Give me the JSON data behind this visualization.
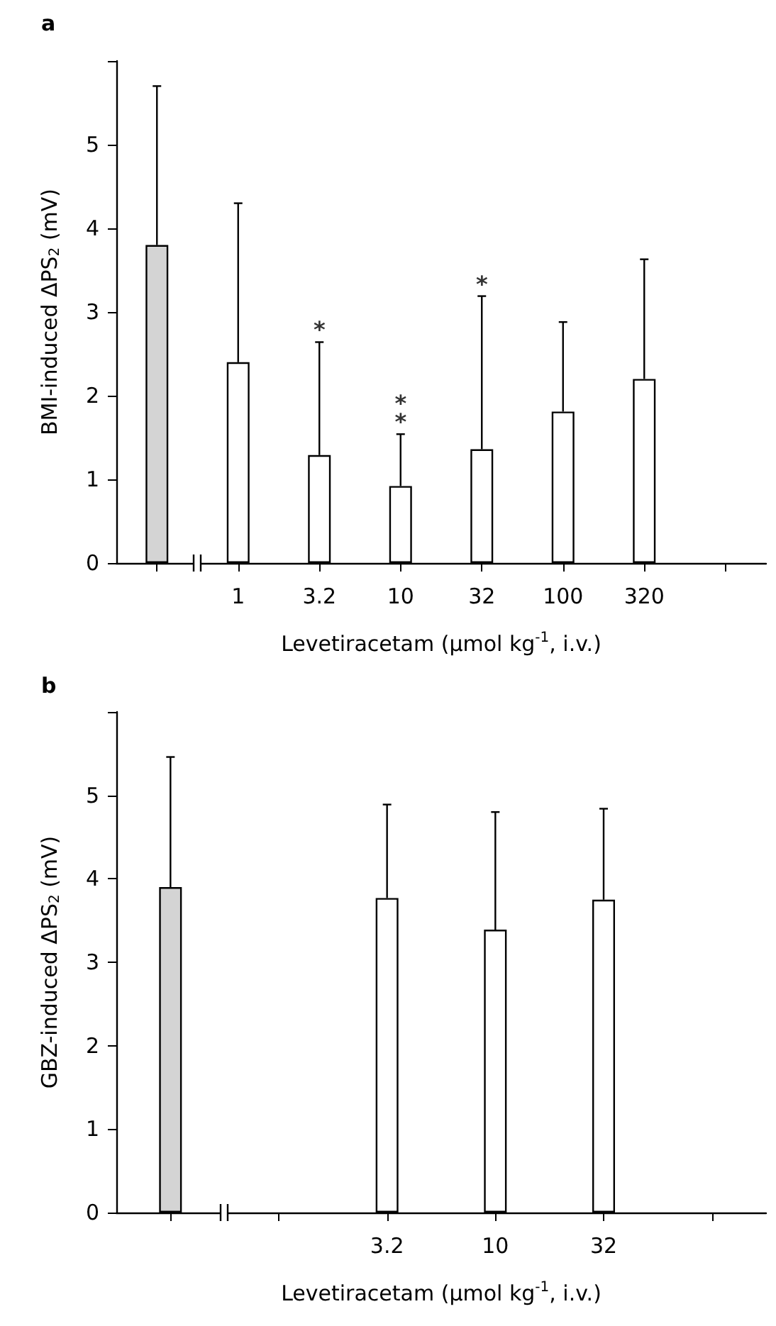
{
  "chart_data": [
    {
      "type": "bar",
      "title": "a",
      "ylabel": "BMI-induced ΔPS$_{2}$ (mV)",
      "xlabel": "Levetiracetam (μmol kg$^{-1}$, i.v.)",
      "categories": [
        null,
        "1",
        "3.2",
        "10",
        "32",
        "100",
        "320",
        null
      ],
      "values": [
        3.8,
        2.4,
        1.29,
        0.92,
        1.36,
        1.81,
        2.2,
        null
      ],
      "colors": [
        "#d4d4d4",
        "#ffffff",
        "#ffffff",
        "#ffffff",
        "#ffffff",
        "#ffffff",
        "#ffffff",
        "#ffffff"
      ],
      "errors": [
        [
          3.8,
          5.7
        ],
        [
          2.4,
          4.3
        ],
        [
          1.29,
          2.64
        ],
        [
          0.92,
          1.54
        ],
        [
          1.36,
          3.19
        ],
        [
          1.81,
          2.88
        ],
        [
          2.2,
          3.63
        ],
        null
      ],
      "ylim": [
        0,
        6
      ],
      "yticks": [
        0,
        1,
        2,
        3,
        4,
        5,
        {
          "value": 6,
          "label": null
        }
      ],
      "annotations": [
        {
          "text": "*",
          "x": "3.2",
          "y": 2.64
        },
        {
          "text": "**",
          "x": "10",
          "y": 1.54
        },
        {
          "text": "*",
          "x": "32",
          "y": 3.19
        }
      ]
    },
    {
      "type": "bar",
      "title": "b",
      "ylabel": "GBZ-induced ΔPS$_{2}$ (mV)",
      "xlabel": "Levetiracetam (μmol kg$^{-1}$, i.v.)",
      "categories": [
        null,
        null,
        "3.2",
        "10",
        "32",
        null
      ],
      "values": [
        3.9,
        null,
        3.77,
        3.39,
        3.75,
        null
      ],
      "colors": [
        "#d4d4d4",
        "#ffffff",
        "#ffffff",
        "#ffffff",
        "#ffffff",
        "#ffffff"
      ],
      "errors": [
        [
          3.9,
          5.46
        ],
        null,
        [
          3.77,
          4.89
        ],
        [
          3.39,
          4.8
        ],
        [
          3.75,
          4.84
        ],
        null
      ],
      "ylim": [
        0,
        6
      ],
      "yticks": [
        0,
        1,
        2,
        3,
        4,
        5,
        {
          "value": 6,
          "label": null
        }
      ]
    }
  ]
}
